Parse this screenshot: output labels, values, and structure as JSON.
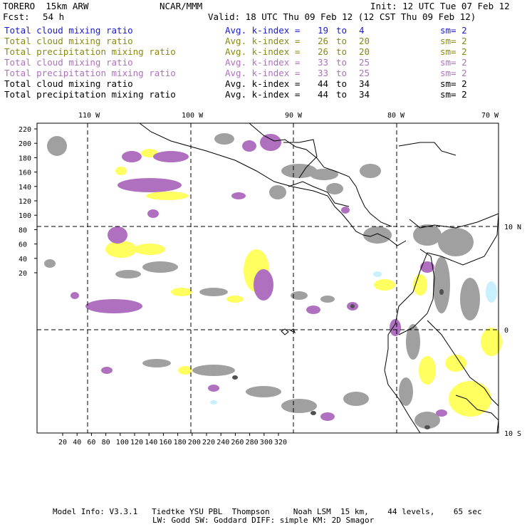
{
  "header": {
    "model": "TORERO  15km ARW",
    "center": "NCAR/MMM",
    "init": "Init: 12 UTC Tue 07 Feb 12",
    "fcst_label": "Fcst:",
    "fcst_value": "54 h",
    "valid": "Valid: 18 UTC Thu 09 Feb 12 (12 CST Thu 09 Feb 12)"
  },
  "legend": [
    {
      "field": "Total cloud mixing ratio",
      "avg": "Avg. k-index =",
      "from": "19",
      "to": "to",
      "to_val": "4",
      "sm": "sm= 2",
      "color": "#1a1ad0"
    },
    {
      "field": "Total cloud mixing ratio",
      "avg": "Avg. k-index =",
      "from": "26",
      "to": "to",
      "to_val": "20",
      "sm": "sm= 2",
      "color": "#8a8a10"
    },
    {
      "field": "Total precipitation mixing ratio",
      "avg": "Avg. k-index =",
      "from": "26",
      "to": "to",
      "to_val": "20",
      "sm": "sm= 2",
      "color": "#8a8a10"
    },
    {
      "field": "Total cloud mixing ratio",
      "avg": "Avg. k-index =",
      "from": "33",
      "to": "to",
      "to_val": "25",
      "sm": "sm= 2",
      "color": "#b070c0"
    },
    {
      "field": "Total precipitation mixing ratio",
      "avg": "Avg. k-index =",
      "from": "33",
      "to": "to",
      "to_val": "25",
      "sm": "sm= 2",
      "color": "#b070c0"
    },
    {
      "field": "Total cloud mixing ratio",
      "avg": "Avg. k-index =",
      "from": "44",
      "to": "to",
      "to_val": "34",
      "sm": "sm= 2",
      "color": "#000000"
    },
    {
      "field": "Total precipitation mixing ratio",
      "avg": "Avg. k-index =",
      "from": "44",
      "to": "to",
      "to_val": "34",
      "sm": "sm= 2",
      "color": "#000000"
    }
  ],
  "map": {
    "lon_labels": [
      "110 W",
      "100 W",
      "90 W",
      "80 W",
      "70 W"
    ],
    "lat_labels": [
      "10 N",
      "0",
      "10 S"
    ],
    "y_ticks": [
      "220",
      "200",
      "180",
      "160",
      "140",
      "120",
      "100",
      "80",
      "60",
      "40",
      "20"
    ],
    "x_ticks": [
      "20",
      "40",
      "60",
      "80",
      "100",
      "120",
      "140",
      "160",
      "180",
      "200",
      "220",
      "240",
      "260",
      "280",
      "300",
      "320"
    ],
    "colors": {
      "gray": "#a0a0a0",
      "yellow": "#ffff60",
      "purple": "#b070c0",
      "cyan": "#c8f0ff",
      "dark": "#505050"
    }
  },
  "footer": {
    "line1": "Model Info: V3.3.1   Tiedtke YSU PBL  Thompson     Noah LSM  15 km,    44 levels,    65 sec",
    "line2": "LW: Godd SW: Goddard DIFF: simple KM: 2D Smagor"
  }
}
